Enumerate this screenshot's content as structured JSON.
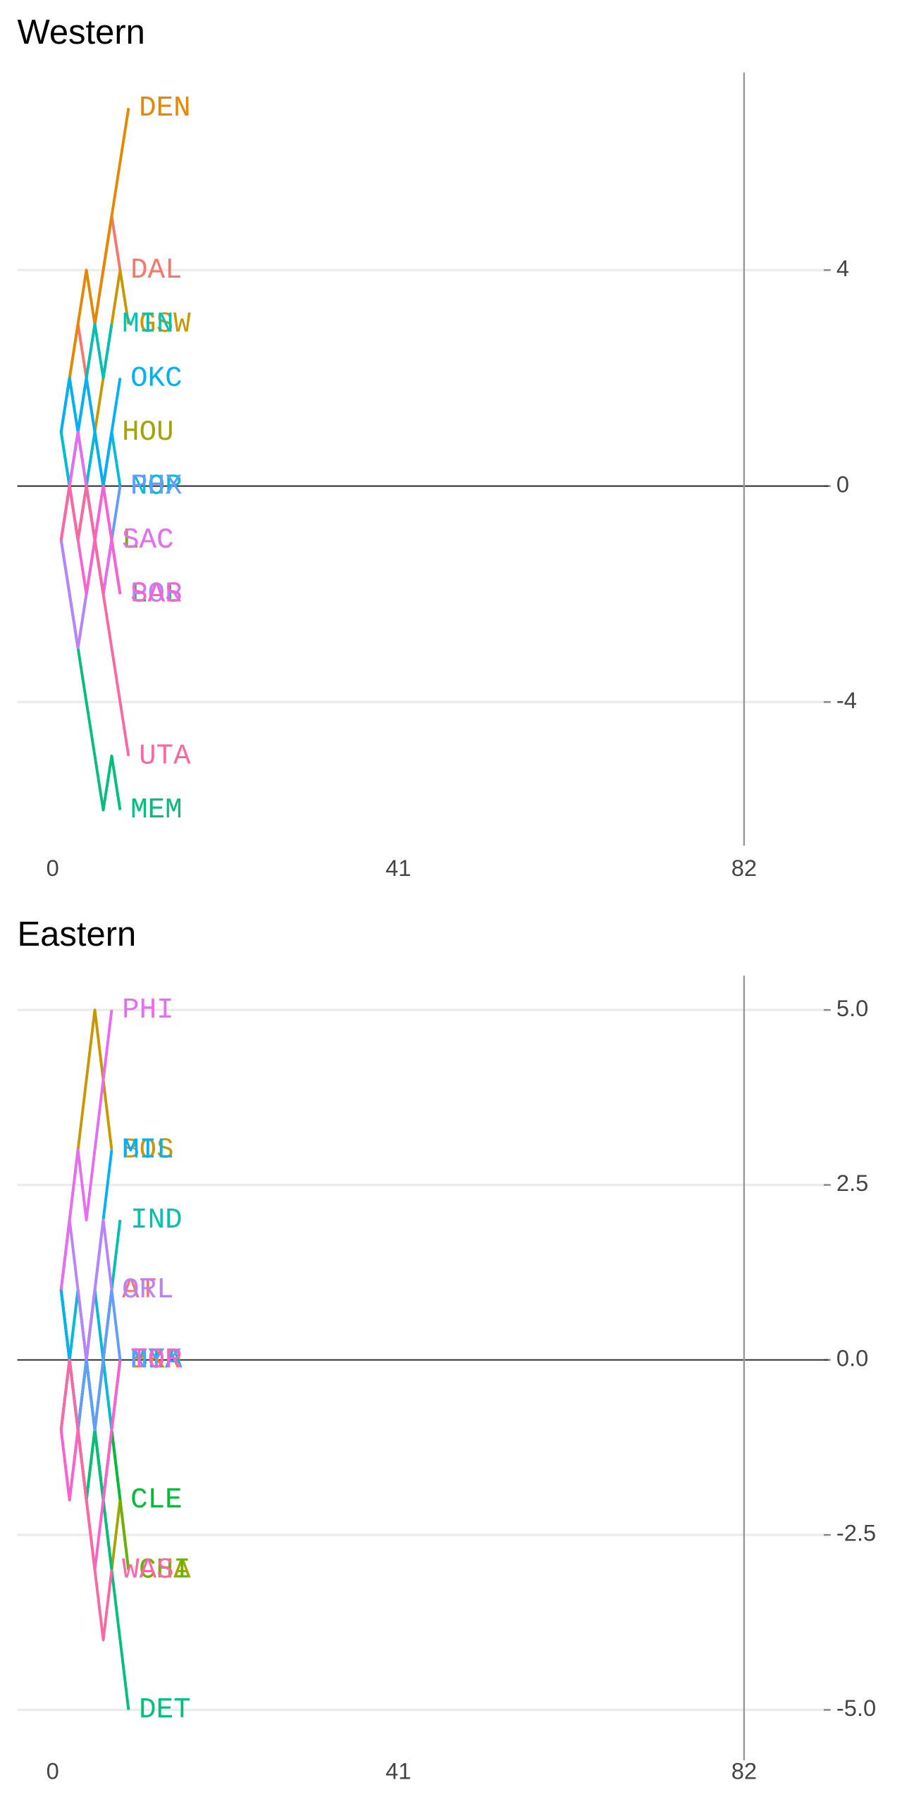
{
  "chart_data": [
    {
      "type": "line",
      "title": "Western",
      "x": [
        1,
        2,
        3,
        4,
        5,
        6,
        7,
        8,
        9
      ],
      "xlim": [
        -4.2,
        92
      ],
      "xticks": [
        0,
        41,
        82
      ],
      "ylim": [
        -6.66,
        7.66
      ],
      "yticks": [
        -4,
        0,
        4
      ],
      "grid": true,
      "hline": 0,
      "vline": 82,
      "series": [
        {
          "name": "DAL",
          "color": "#F8766D",
          "values": [
            1,
            2,
            3,
            2,
            3,
            4,
            5,
            4,
            null
          ]
        },
        {
          "name": "DEN",
          "color": "#E58700",
          "values": [
            1,
            2,
            3,
            4,
            3,
            4,
            5,
            6,
            7
          ]
        },
        {
          "name": "GSW",
          "color": "#C99800",
          "values": [
            1,
            0,
            1,
            2,
            1,
            2,
            3,
            4,
            3
          ]
        },
        {
          "name": "HOU",
          "color": "#A3A500",
          "values": [
            -1,
            0,
            1,
            0,
            1,
            0,
            1,
            null,
            null
          ]
        },
        {
          "name": "LAC",
          "color": "#6BB100",
          "values": [
            -1,
            0,
            -1,
            0,
            -1,
            -2,
            -1,
            null,
            null
          ]
        },
        {
          "name": "LAL",
          "color": "#00BA38",
          "values": [
            1,
            0,
            -1,
            0,
            -1,
            -2,
            -1,
            -2,
            null
          ]
        },
        {
          "name": "MEM",
          "color": "#00BF7D",
          "values": [
            -1,
            -2,
            -3,
            -4,
            -5,
            -6,
            -5,
            -6,
            null
          ]
        },
        {
          "name": "MIN",
          "color": "#00C0AF",
          "values": [
            1,
            2,
            1,
            2,
            3,
            2,
            3,
            null,
            null
          ]
        },
        {
          "name": "NOP",
          "color": "#00BCD8",
          "values": [
            1,
            0,
            1,
            0,
            1,
            0,
            1,
            0,
            null
          ]
        },
        {
          "name": "OKC",
          "color": "#00B0F6",
          "values": [
            1,
            2,
            1,
            2,
            1,
            0,
            1,
            2,
            null
          ]
        },
        {
          "name": "PHX",
          "color": "#619CFF",
          "values": [
            -1,
            -2,
            -3,
            -2,
            -1,
            0,
            -1,
            0,
            null
          ]
        },
        {
          "name": "POR",
          "color": "#B983FF",
          "values": [
            -1,
            -2,
            -3,
            -2,
            -1,
            -2,
            -1,
            -2,
            null
          ]
        },
        {
          "name": "SAC",
          "color": "#E76BF3",
          "values": [
            -1,
            0,
            1,
            0,
            -1,
            -2,
            -1,
            null,
            null
          ]
        },
        {
          "name": "SAS",
          "color": "#FD61D1",
          "values": [
            -1,
            0,
            -1,
            -2,
            -1,
            0,
            -1,
            -2,
            null
          ]
        },
        {
          "name": "UTA",
          "color": "#FF67A4",
          "values": [
            -1,
            0,
            -1,
            0,
            -1,
            -2,
            -3,
            -4,
            -5
          ]
        }
      ]
    },
    {
      "type": "line",
      "title": "Eastern",
      "x": [
        1,
        2,
        3,
        4,
        5,
        6,
        7,
        8,
        9
      ],
      "xlim": [
        -4.2,
        92
      ],
      "xticks": [
        0,
        41,
        82
      ],
      "ylim": [
        -5.72,
        5.49
      ],
      "yticks": [
        {
          "value": -5,
          "label": "-5.0"
        },
        -2.5,
        {
          "value": 0,
          "label": "0.0"
        },
        2.5,
        {
          "value": 5,
          "label": "5.0"
        }
      ],
      "grid": true,
      "hline": 0,
      "vline": 82,
      "series": [
        {
          "name": "ATL",
          "color": "#F8766D",
          "values": [
            -1,
            0,
            -1,
            0,
            1,
            0,
            1,
            null,
            null
          ]
        },
        {
          "name": "BKN",
          "color": "#E58700",
          "values": [
            -1,
            -2,
            -1,
            0,
            -1,
            0,
            -1,
            0,
            null
          ]
        },
        {
          "name": "BOS",
          "color": "#C99800",
          "values": [
            1,
            2,
            3,
            4,
            5,
            4,
            3,
            null,
            null
          ]
        },
        {
          "name": "CHA",
          "color": "#A3A500",
          "values": [
            1,
            0,
            -1,
            -2,
            -1,
            -2,
            -3,
            -2,
            -3
          ]
        },
        {
          "name": "CHI",
          "color": "#6BB100",
          "values": [
            -1,
            0,
            -1,
            -2,
            -1,
            -2,
            -1,
            -2,
            -3
          ]
        },
        {
          "name": "CLE",
          "color": "#00BA38",
          "values": [
            1,
            0,
            -1,
            0,
            -1,
            -2,
            -1,
            -2,
            null
          ]
        },
        {
          "name": "DET",
          "color": "#00BF7D",
          "values": [
            1,
            0,
            -1,
            -2,
            -1,
            -2,
            -3,
            -4,
            -5
          ]
        },
        {
          "name": "IND",
          "color": "#00C0AF",
          "values": [
            1,
            0,
            1,
            0,
            -1,
            0,
            1,
            2,
            null
          ]
        },
        {
          "name": "MIA",
          "color": "#00BCD8",
          "values": [
            1,
            0,
            1,
            0,
            1,
            0,
            -1,
            0,
            null
          ]
        },
        {
          "name": "MIL",
          "color": "#00B0F6",
          "values": [
            1,
            0,
            -1,
            0,
            1,
            2,
            3,
            null,
            null
          ]
        },
        {
          "name": "NYK",
          "color": "#619CFF",
          "values": [
            -1,
            0,
            -1,
            0,
            -1,
            0,
            1,
            0,
            null
          ]
        },
        {
          "name": "ORL",
          "color": "#B983FF",
          "values": [
            1,
            2,
            1,
            0,
            1,
            2,
            1,
            null,
            null
          ]
        },
        {
          "name": "PHI",
          "color": "#E76BF3",
          "values": [
            1,
            2,
            3,
            2,
            3,
            4,
            5,
            null,
            null
          ]
        },
        {
          "name": "TOR",
          "color": "#FD61D1",
          "values": [
            -1,
            -2,
            -1,
            -2,
            -3,
            -2,
            -1,
            0,
            null
          ]
        },
        {
          "name": "WAS",
          "color": "#FF67A4",
          "values": [
            -1,
            0,
            -1,
            -2,
            -3,
            -4,
            -3,
            null,
            null
          ]
        }
      ]
    }
  ]
}
